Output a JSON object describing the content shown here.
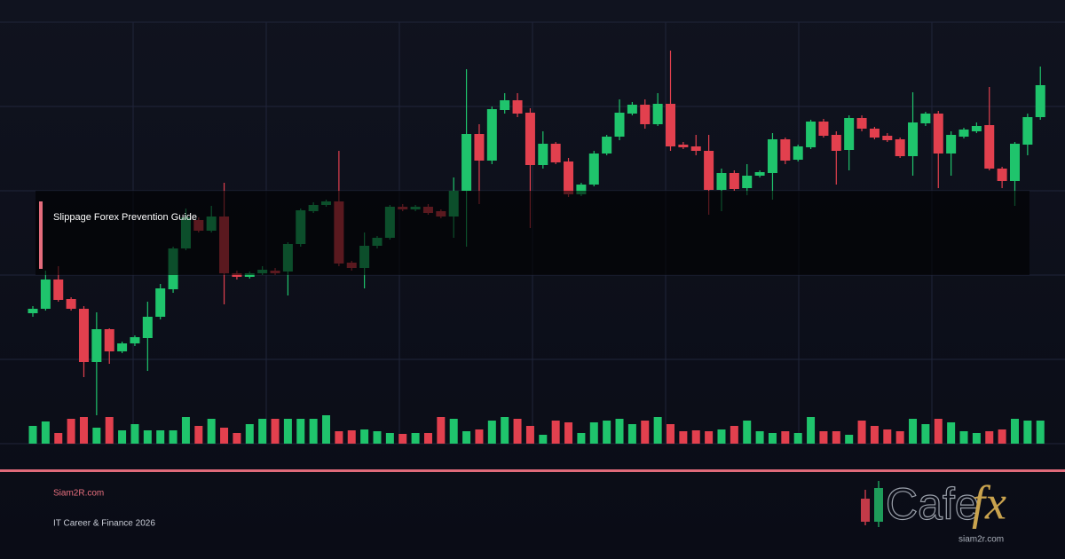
{
  "chart_data": {
    "type": "candlestick",
    "title": "Slippage Forex Prevention Guide",
    "open": [
      147,
      152,
      185,
      163,
      152,
      92,
      129,
      104,
      113,
      119,
      143,
      174,
      220,
      252,
      240,
      256,
      192,
      188,
      192,
      195,
      194,
      225,
      262,
      269,
      273,
      204,
      198,
      223,
      232,
      267,
      264,
      267,
      262,
      256,
      285,
      349,
      319,
      376,
      387,
      373,
      314,
      338,
      318,
      281,
      292,
      327,
      346,
      372,
      382,
      360,
      383,
      337,
      335,
      330,
      286,
      305,
      288,
      302,
      305,
      343,
      320,
      334,
      363,
      348,
      331,
      367,
      355,
      347,
      343,
      324,
      361,
      372,
      327,
      346,
      352,
      359,
      310,
      296,
      337,
      368
    ],
    "close": [
      152,
      185,
      162,
      152,
      92,
      129,
      104,
      113,
      120,
      143,
      175,
      220,
      255,
      240,
      256,
      192,
      188,
      192,
      196,
      192,
      225,
      263,
      269,
      273,
      203,
      198,
      223,
      232,
      267,
      264,
      267,
      260,
      256,
      285,
      349,
      319,
      377,
      387,
      372,
      314,
      338,
      317,
      281,
      292,
      327,
      346,
      373,
      382,
      360,
      383,
      335,
      334,
      330,
      286,
      305,
      287,
      302,
      306,
      343,
      319,
      335,
      363,
      347,
      330,
      367,
      355,
      345,
      342,
      324,
      362,
      372,
      327,
      348,
      354,
      358,
      310,
      296,
      338,
      368,
      404
    ],
    "high": [
      155,
      195,
      200,
      165,
      155,
      148,
      130,
      115,
      122,
      160,
      180,
      222,
      265,
      255,
      268,
      294,
      195,
      194,
      200,
      198,
      227,
      265,
      272,
      275,
      330,
      206,
      238,
      234,
      269,
      270,
      269,
      270,
      264,
      300,
      422,
      360,
      380,
      395,
      395,
      378,
      352,
      340,
      322,
      294,
      330,
      348,
      388,
      385,
      388,
      395,
      443,
      340,
      348,
      348,
      310,
      308,
      315,
      308,
      350,
      345,
      337,
      365,
      366,
      352,
      370,
      370,
      357,
      350,
      345,
      396,
      374,
      375,
      352,
      356,
      362,
      402,
      312,
      340,
      372,
      425
    ],
    "low": [
      143,
      150,
      160,
      150,
      75,
      32,
      90,
      102,
      110,
      82,
      140,
      170,
      218,
      238,
      238,
      157,
      185,
      186,
      190,
      190,
      167,
      222,
      260,
      267,
      200,
      195,
      175,
      220,
      230,
      262,
      262,
      258,
      254,
      232,
      222,
      270,
      315,
      372,
      368,
      243,
      310,
      315,
      278,
      279,
      290,
      325,
      342,
      370,
      355,
      358,
      330,
      332,
      325,
      258,
      262,
      285,
      280,
      300,
      275,
      315,
      318,
      332,
      345,
      292,
      308,
      352,
      343,
      340,
      322,
      302,
      358,
      288,
      302,
      344,
      350,
      308,
      288,
      268,
      325,
      365
    ],
    "volume": [
      20,
      25,
      12,
      28,
      30,
      18,
      30,
      15,
      22,
      15,
      15,
      15,
      30,
      20,
      28,
      18,
      12,
      22,
      28,
      28,
      28,
      28,
      28,
      32,
      14,
      15,
      16,
      14,
      12,
      11,
      12,
      12,
      30,
      28,
      14,
      16,
      26,
      30,
      28,
      20,
      10,
      26,
      24,
      12,
      24,
      26,
      28,
      22,
      26,
      30,
      22,
      14,
      15,
      14,
      16,
      20,
      26,
      14,
      12,
      14,
      12,
      30,
      14,
      14,
      10,
      26,
      20,
      16,
      14,
      28,
      22,
      28,
      24,
      14,
      12,
      14,
      16,
      28,
      26,
      26
    ],
    "colors": {
      "up": "#1fc46c",
      "down": "#e2404e"
    },
    "ylim": [
      0,
      475
    ],
    "yticks": [
      0,
      95,
      190,
      285,
      380,
      475
    ],
    "grid": true
  },
  "footer": {
    "site": "Siam2R.com",
    "tagline": "IT Career & Finance 2026"
  },
  "logo": {
    "name": "Cafe",
    "accent": "fx",
    "url": "siam2r.com"
  }
}
